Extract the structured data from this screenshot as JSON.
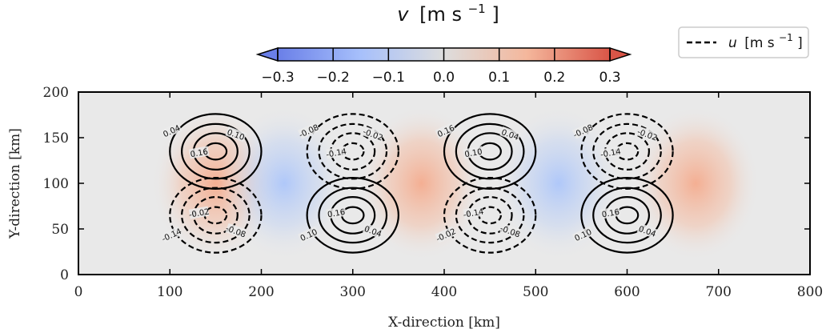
{
  "chart_data": {
    "type": "heatmap",
    "xlabel": "X-direction [km]",
    "ylabel": "Y-direction [km]",
    "xlim": [
      0,
      800
    ],
    "ylim": [
      0,
      200
    ],
    "xticks": [
      "0",
      "100",
      "200",
      "300",
      "400",
      "500",
      "600",
      "700",
      "800"
    ],
    "yticks": [
      "0",
      "50",
      "100",
      "150",
      "200"
    ],
    "grid": false,
    "colorbar": {
      "label_italic": "v",
      "label_unit": "[m s",
      "label_exp": "−1",
      "label_close": "]",
      "ticks": [
        "−0.3",
        "−0.2",
        "−0.1",
        "0.0",
        "0.1",
        "0.2",
        "0.3"
      ],
      "range": [
        -0.3,
        0.3
      ],
      "colormap": "coolwarm",
      "extend": "both",
      "position": "top"
    },
    "legend": {
      "label_italic": "u",
      "label_unit": "[m s",
      "label_exp": "−1",
      "label_close": "]",
      "placement": "top-right",
      "line_style": "dashed"
    },
    "field_v": {
      "description_units": "m s^-1",
      "cells": [
        {
          "x": 150,
          "y": 100,
          "value": 0.14
        },
        {
          "x": 225,
          "y": 100,
          "value": -0.14
        },
        {
          "x": 375,
          "y": 100,
          "value": 0.14
        },
        {
          "x": 525,
          "y": 100,
          "value": -0.14
        },
        {
          "x": 675,
          "y": 100,
          "value": 0.14
        }
      ]
    },
    "contours_u": [
      {
        "cx": 150,
        "cy": 135,
        "sign": 1,
        "labels": [
          "0.04",
          "0.16",
          "0.10"
        ]
      },
      {
        "cx": 150,
        "cy": 65,
        "sign": -1,
        "labels": [
          "-0.14",
          "-0.02",
          "-0.08"
        ]
      },
      {
        "cx": 300,
        "cy": 135,
        "sign": -1,
        "labels": [
          "-0.08",
          "-0.14",
          "-0.02"
        ]
      },
      {
        "cx": 300,
        "cy": 65,
        "sign": 1,
        "labels": [
          "0.10",
          "0.16",
          "0.04"
        ]
      },
      {
        "cx": 450,
        "cy": 135,
        "sign": 1,
        "labels": [
          "0.16",
          "0.10",
          "0.04"
        ]
      },
      {
        "cx": 450,
        "cy": 65,
        "sign": -1,
        "labels": [
          "-0.02",
          "-0.14",
          "-0.08"
        ]
      },
      {
        "cx": 600,
        "cy": 135,
        "sign": -1,
        "labels": [
          "-0.08",
          "-0.14",
          "-0.02"
        ]
      },
      {
        "cx": 600,
        "cy": 65,
        "sign": 1,
        "labels": [
          "0.10",
          "0.16",
          "0.04"
        ]
      }
    ],
    "colors": {
      "negative": "#3b4cc0",
      "neutral": "#dddddd",
      "positive": "#b40426",
      "background": "#e9e9e9",
      "contour": "#000000"
    }
  }
}
